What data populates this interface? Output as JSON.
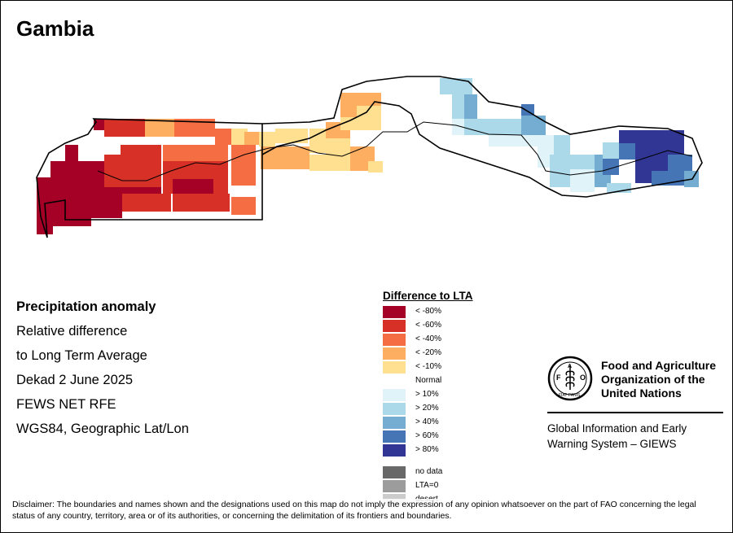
{
  "title": "Gambia",
  "info": {
    "line1": "Precipitation anomaly",
    "line2": "Relative difference",
    "line3": "to Long Term Average",
    "line4": "Dekad 2 June 2025",
    "line5": "FEWS NET RFE",
    "line6": "WGS84, Geographic Lat/Lon"
  },
  "legend": {
    "title": "Difference to LTA",
    "items": [
      {
        "label": "< -80%",
        "color": "#a50026"
      },
      {
        "label": "< -60%",
        "color": "#d73027"
      },
      {
        "label": "< -40%",
        "color": "#f46d43"
      },
      {
        "label": "< -20%",
        "color": "#fdae61"
      },
      {
        "label": "< -10%",
        "color": "#fee090"
      },
      {
        "label": "Normal",
        "color": "#ffffff"
      },
      {
        "label": "> 10%",
        "color": "#e0f3f8"
      },
      {
        "label": "> 20%",
        "color": "#abd9e9"
      },
      {
        "label": "> 40%",
        "color": "#74add1"
      },
      {
        "label": "> 60%",
        "color": "#4575b4"
      },
      {
        "label": "> 80%",
        "color": "#313695"
      }
    ],
    "extra": [
      {
        "label": "no data",
        "color": "#686868"
      },
      {
        "label": "LTA=0",
        "color": "#9c9c9c"
      },
      {
        "label": "desert",
        "color": "#cccccc"
      }
    ]
  },
  "logo": {
    "emblem_text": "FAO",
    "emblem_motto": "FIAT PANIS",
    "org_name": [
      "Food and Agriculture",
      "Organization of the",
      "United Nations"
    ],
    "giews": [
      "Global Information and Early",
      "Warning System – GIEWS"
    ]
  },
  "disclaimer": "Disclaimer: The boundaries and names shown and the designations used on this map do not imply the expression of any opinion whatsoever on the part of FAO concerning the legal status of any country, territory, area or of its authorities, or concerning the delimitation of its frontiers and boundaries."
}
